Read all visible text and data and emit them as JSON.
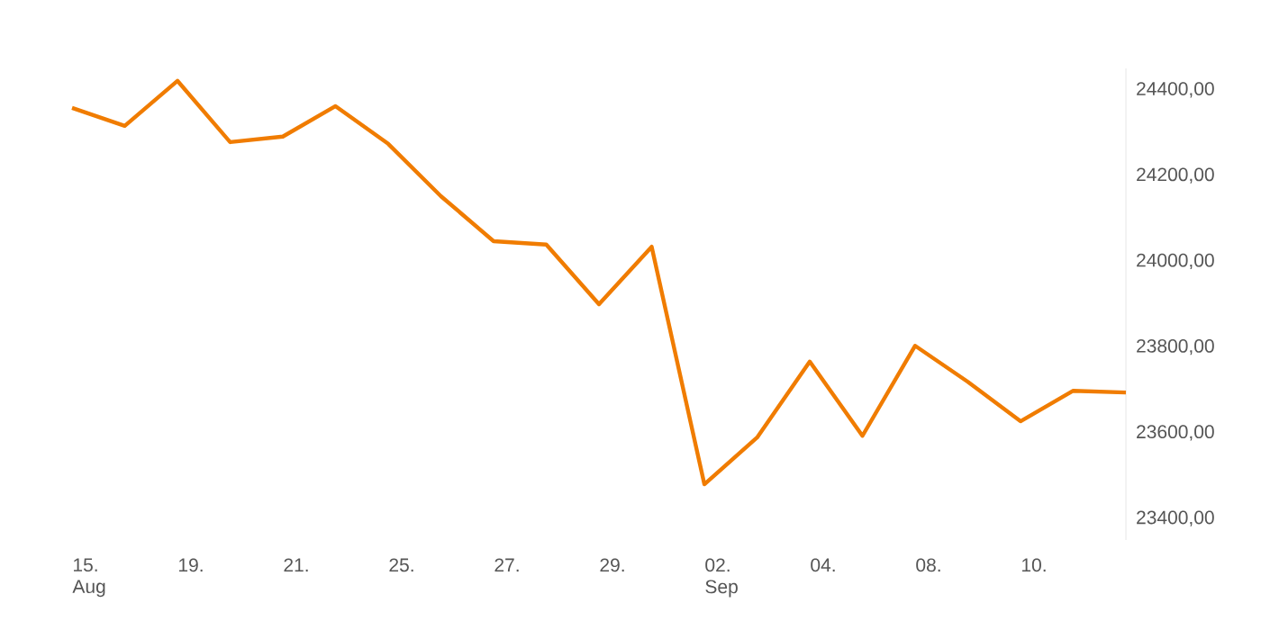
{
  "chart_data": {
    "type": "line",
    "categories": [
      "15. Aug",
      null,
      "19.",
      null,
      "21.",
      null,
      "25.",
      null,
      "27.",
      null,
      "29.",
      null,
      "02. Sep",
      null,
      "04.",
      null,
      "08.",
      null,
      "10.",
      null,
      null
    ],
    "series": [
      {
        "color": "#f07c00",
        "values": [
          24358,
          24316,
          24421,
          24278,
          24291,
          24362,
          24274,
          24152,
          24047,
          24039,
          23900,
          24034,
          23480,
          23589,
          23766,
          23593,
          23803,
          23719,
          23627,
          23698,
          23694
        ]
      }
    ],
    "ylim": [
      23350,
      24450
    ],
    "yticks": [
      {
        "value": 23400,
        "label": "23400,00"
      },
      {
        "value": 23600,
        "label": "23600,00"
      },
      {
        "value": 23800,
        "label": "23800,00"
      },
      {
        "value": 24000,
        "label": "24000,00"
      },
      {
        "value": 24200,
        "label": "24200,00"
      },
      {
        "value": 24400,
        "label": "24400,00"
      }
    ],
    "grid": false,
    "marker": "none",
    "line_style": "solid"
  }
}
